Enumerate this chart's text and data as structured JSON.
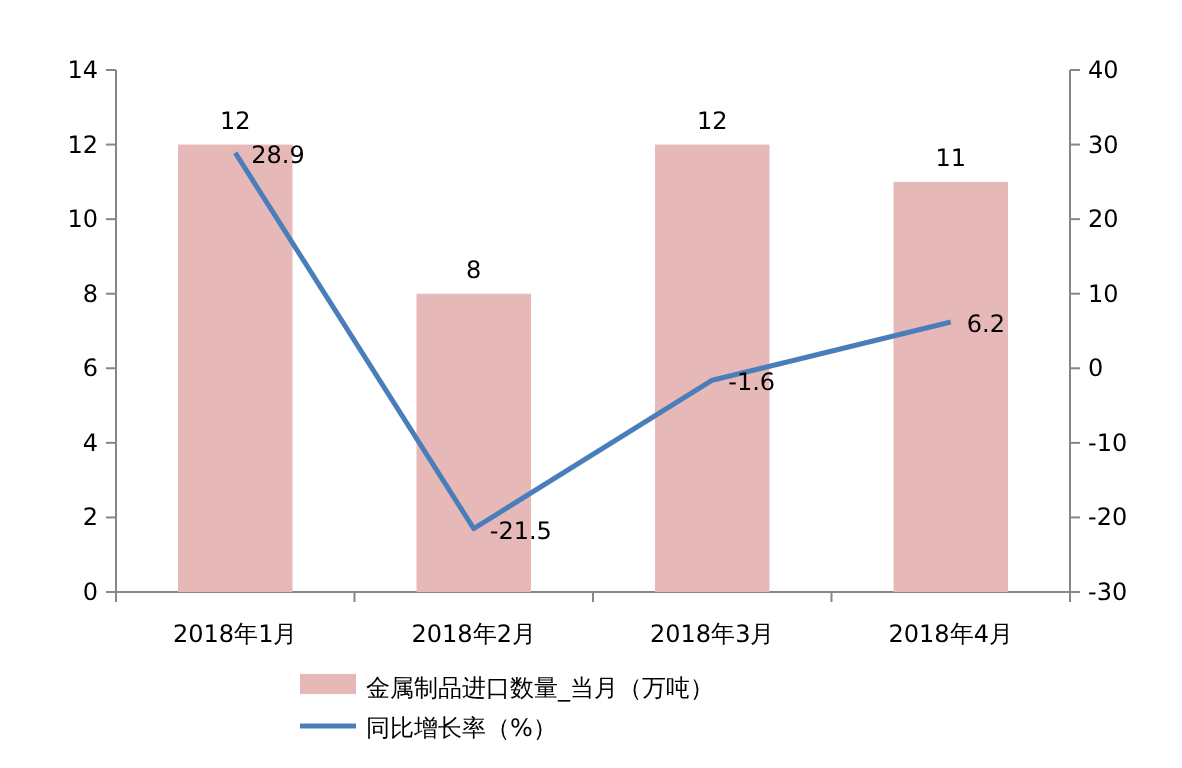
{
  "chart_data": {
    "type": "bar",
    "categories": [
      "2018年1月",
      "2018年2月",
      "2018年3月",
      "2018年4月"
    ],
    "series": [
      {
        "name": "金属制品进口数量_当月（万吨）",
        "color": "#e6b9b8",
        "values": [
          12,
          8,
          12,
          11
        ]
      },
      {
        "name": "同比增长率（%）",
        "type": "line",
        "axis": "y2",
        "color": "#4a7ebb",
        "values": [
          28.9,
          -21.5,
          -1.6,
          6.2
        ]
      }
    ],
    "ylim": [
      0,
      14
    ],
    "yticks": [
      0,
      2,
      4,
      6,
      8,
      10,
      12,
      14
    ],
    "y2lim": [
      -30,
      40
    ],
    "y2ticks": [
      -30,
      -20,
      -10,
      0,
      10,
      20,
      30,
      40
    ],
    "data_labels": true,
    "legend": "bottom"
  }
}
